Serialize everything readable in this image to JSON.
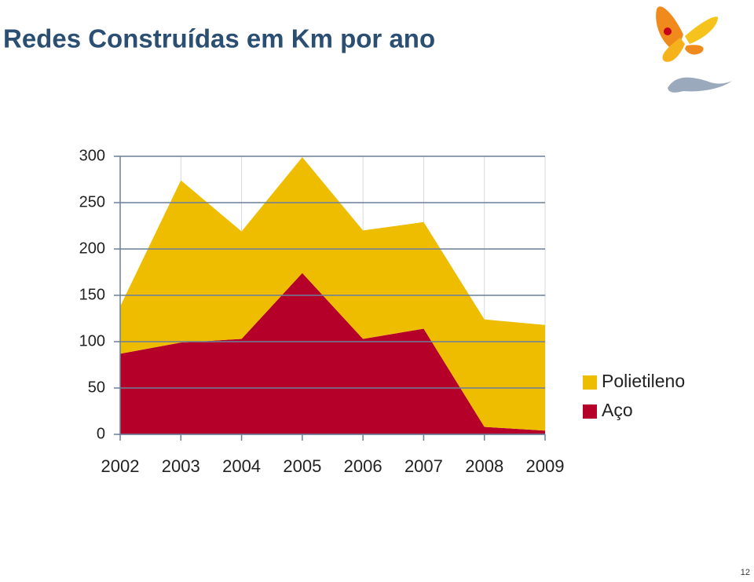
{
  "chart_data": {
    "type": "stacked_area",
    "title": "Redes Construídas em Km por ano",
    "categories": [
      "2002",
      "2003",
      "2004",
      "2005",
      "2006",
      "2007",
      "2008",
      "2009"
    ],
    "series": [
      {
        "name": "Aço",
        "color": "#b5002a",
        "values": [
          87,
          99,
          103,
          174,
          103,
          114,
          8,
          4
        ]
      },
      {
        "name": "Polietileno",
        "color": "#eebd00",
        "values": [
          51,
          175,
          116,
          125,
          117,
          115,
          116,
          114
        ]
      }
    ],
    "ylim": [
      0,
      300
    ],
    "yticks": [
      0,
      50,
      100,
      150,
      200,
      250,
      300
    ],
    "grid": true,
    "legend": "right"
  },
  "page_number": "12"
}
